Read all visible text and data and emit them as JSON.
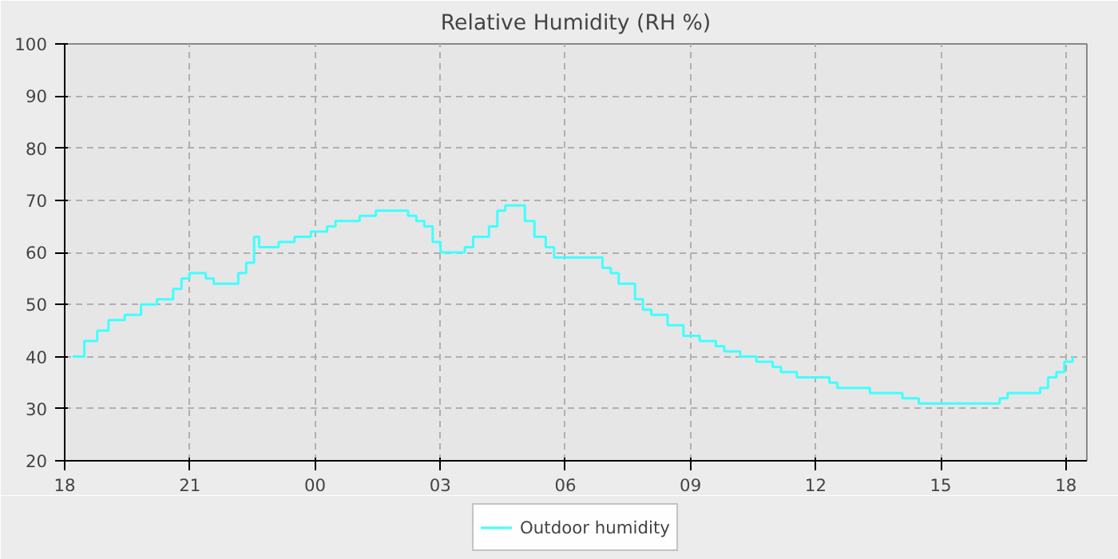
{
  "chart_data": {
    "type": "step",
    "title": "Relative Humidity (RH %)",
    "x": [
      18.19,
      18.47,
      18.78,
      19.05,
      19.44,
      19.83,
      20.21,
      20.6,
      20.8,
      20.99,
      21.38,
      21.57,
      21.96,
      22.16,
      22.35,
      22.54,
      22.66,
      23.05,
      23.13,
      23.51,
      23.9,
      24.29,
      24.49,
      24.87,
      25.07,
      25.46,
      25.84,
      26.23,
      26.43,
      26.62,
      26.82,
      27.01,
      27.4,
      27.59,
      27.79,
      27.98,
      28.17,
      28.37,
      28.56,
      28.87,
      29.03,
      29.26,
      29.53,
      29.73,
      30.12,
      30.5,
      30.7,
      30.89,
      31.09,
      31.28,
      31.67,
      31.86,
      32.06,
      32.45,
      32.83,
      33.22,
      33.61,
      33.81,
      34.19,
      34.58,
      34.97,
      35.17,
      35.55,
      35.94,
      36.33,
      36.52,
      36.91,
      37.3,
      37.69,
      38.08,
      38.47,
      39.05,
      39.83,
      40.41,
      40.6,
      40.99,
      41.38,
      41.57,
      41.77,
      41.96,
      42.16
    ],
    "series": [
      {
        "name": "Outdoor humidity",
        "color": "#40ffff",
        "values": [
          40,
          43,
          45,
          47,
          48,
          50,
          51,
          53,
          55,
          56,
          55,
          54,
          54,
          56,
          58,
          63,
          61,
          61,
          62,
          63,
          64,
          65,
          66,
          66,
          67,
          68,
          68,
          67,
          66,
          65,
          62,
          60,
          60,
          61,
          63,
          63,
          65,
          68,
          69,
          69,
          66,
          63,
          61,
          59,
          59,
          59,
          59,
          57,
          56,
          54,
          51,
          49,
          48,
          46,
          44,
          43,
          42,
          41,
          40,
          39,
          38,
          37,
          36,
          36,
          35,
          34,
          34,
          33,
          33,
          32,
          31,
          31,
          31,
          32,
          33,
          33,
          34,
          36,
          37,
          39,
          40
        ]
      }
    ],
    "xlim": [
      18,
      42.5
    ],
    "xticks": [
      {
        "value": 18,
        "label": "18"
      },
      {
        "value": 21,
        "label": "21"
      },
      {
        "value": 24,
        "label": "00"
      },
      {
        "value": 27,
        "label": "03"
      },
      {
        "value": 30,
        "label": "06"
      },
      {
        "value": 33,
        "label": "09"
      },
      {
        "value": 36,
        "label": "12"
      },
      {
        "value": 39,
        "label": "15"
      },
      {
        "value": 42,
        "label": "18"
      }
    ],
    "ylim": [
      20,
      100
    ],
    "yticks": [
      20,
      30,
      40,
      50,
      60,
      70,
      80,
      90,
      100
    ],
    "grid": true,
    "legend": "bottom",
    "line_style": "solid"
  }
}
